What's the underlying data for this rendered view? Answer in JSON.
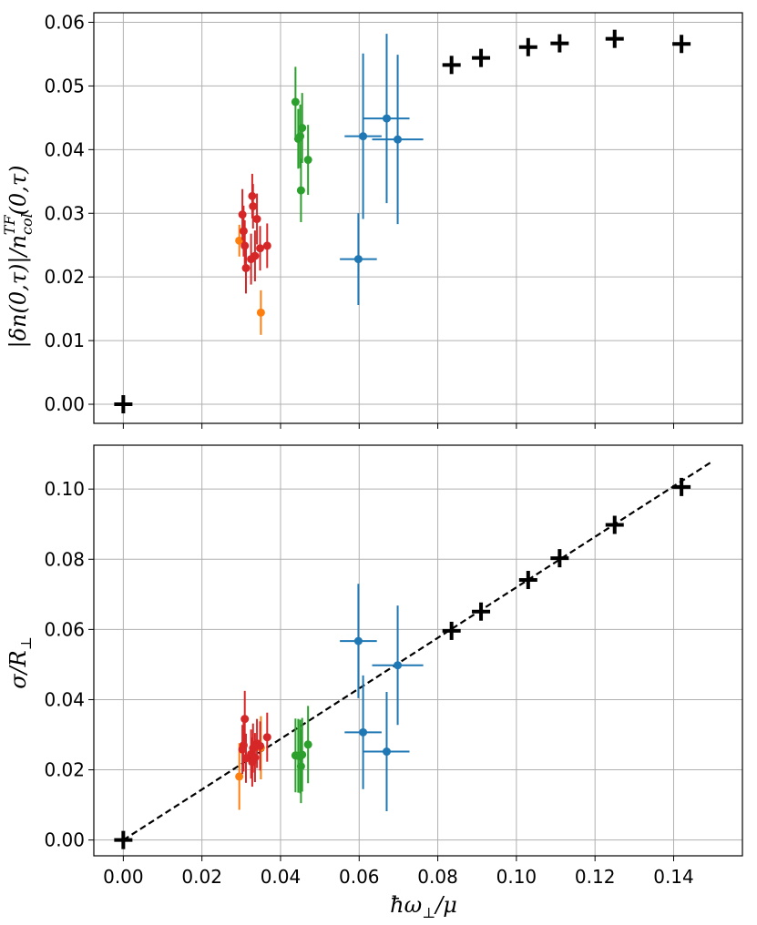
{
  "chart_data": [
    {
      "type": "scatter",
      "panel": "top",
      "title": "",
      "xlabel": "",
      "ylabel": "|δn(0,τ)|/n_col^TF(0,τ)",
      "xlim": [
        -0.0075,
        0.1575
      ],
      "ylim": [
        -0.003,
        0.0615
      ],
      "grid": true,
      "x_ticks": [
        0.0,
        0.02,
        0.04,
        0.06,
        0.08,
        0.1,
        0.12,
        0.14
      ],
      "y_ticks": [
        0.0,
        0.01,
        0.02,
        0.03,
        0.04,
        0.05,
        0.06
      ],
      "y_tick_labels": [
        "0.00",
        "0.01",
        "0.02",
        "0.03",
        "0.04",
        "0.05",
        "0.06"
      ],
      "series": [
        {
          "color": "#1f77b4",
          "marker": "circle",
          "points": [
            {
              "x": 0.0598,
              "y": 0.0228,
              "xerr": 0.0047,
              "yerr": 0.0072
            },
            {
              "x": 0.061,
              "y": 0.0421,
              "xerr": 0.0047,
              "yerr": 0.013
            },
            {
              "x": 0.067,
              "y": 0.0449,
              "xerr": 0.0058,
              "yerr": 0.0133
            },
            {
              "x": 0.0698,
              "y": 0.0416,
              "xerr": 0.0065,
              "yerr": 0.0133
            }
          ]
        },
        {
          "color": "#2ca02c",
          "marker": "circle",
          "points": [
            {
              "x": 0.0438,
              "y": 0.0475,
              "xerr": 0.0004,
              "yerr": 0.0055
            },
            {
              "x": 0.0445,
              "y": 0.0417,
              "xerr": 0.0004,
              "yerr": 0.0047
            },
            {
              "x": 0.045,
              "y": 0.0421,
              "xerr": 0.0004,
              "yerr": 0.005
            },
            {
              "x": 0.0452,
              "y": 0.0336,
              "xerr": 0.0003,
              "yerr": 0.005
            },
            {
              "x": 0.0455,
              "y": 0.0434,
              "xerr": 0.0006,
              "yerr": 0.0055
            },
            {
              "x": 0.047,
              "y": 0.0384,
              "xerr": 0.0005,
              "yerr": 0.0055
            }
          ]
        },
        {
          "color": "#ff7f0e",
          "marker": "circle",
          "points": [
            {
              "x": 0.0295,
              "y": 0.0257,
              "xerr": 0.0004,
              "yerr": 0.0025
            },
            {
              "x": 0.035,
              "y": 0.0144,
              "xerr": 0.0002,
              "yerr": 0.0035
            }
          ]
        },
        {
          "color": "#d62728",
          "marker": "circle",
          "points": [
            {
              "x": 0.0303,
              "y": 0.0298,
              "xerr": 0.0003,
              "yerr": 0.004
            },
            {
              "x": 0.0306,
              "y": 0.0272,
              "xerr": 0.0003,
              "yerr": 0.004
            },
            {
              "x": 0.0309,
              "y": 0.0249,
              "xerr": 0.0003,
              "yerr": 0.004
            },
            {
              "x": 0.0312,
              "y": 0.0214,
              "xerr": 0.0003,
              "yerr": 0.004
            },
            {
              "x": 0.0325,
              "y": 0.0228,
              "xerr": 0.0003,
              "yerr": 0.004
            },
            {
              "x": 0.0328,
              "y": 0.0327,
              "xerr": 0.0003,
              "yerr": 0.0035
            },
            {
              "x": 0.033,
              "y": 0.0311,
              "xerr": 0.0003,
              "yerr": 0.0035
            },
            {
              "x": 0.0335,
              "y": 0.0233,
              "xerr": 0.0003,
              "yerr": 0.004
            },
            {
              "x": 0.034,
              "y": 0.0291,
              "xerr": 0.0003,
              "yerr": 0.004
            },
            {
              "x": 0.0348,
              "y": 0.0245,
              "xerr": 0.0003,
              "yerr": 0.0035
            },
            {
              "x": 0.0366,
              "y": 0.0249,
              "xerr": 0.0003,
              "yerr": 0.0035
            }
          ]
        },
        {
          "color": "#000000",
          "marker": "plus",
          "points": [
            {
              "x": 0.0,
              "y": 0.0
            },
            {
              "x": 0.0835,
              "y": 0.0533
            },
            {
              "x": 0.091,
              "y": 0.0544
            },
            {
              "x": 0.103,
              "y": 0.0561
            },
            {
              "x": 0.111,
              "y": 0.0567
            },
            {
              "x": 0.125,
              "y": 0.0574
            },
            {
              "x": 0.142,
              "y": 0.0566
            }
          ]
        }
      ]
    },
    {
      "type": "scatter",
      "panel": "bottom",
      "title": "",
      "xlabel": "ħω⊥/μ",
      "ylabel": "σ/R⊥",
      "xlim": [
        -0.0075,
        0.1575
      ],
      "ylim": [
        -0.0045,
        0.1125
      ],
      "grid": true,
      "x_ticks": [
        0.0,
        0.02,
        0.04,
        0.06,
        0.08,
        0.1,
        0.12,
        0.14
      ],
      "x_tick_labels": [
        "0.00",
        "0.02",
        "0.04",
        "0.06",
        "0.08",
        "0.10",
        "0.12",
        "0.14"
      ],
      "y_ticks": [
        0.0,
        0.02,
        0.04,
        0.06,
        0.08,
        0.1
      ],
      "y_tick_labels": [
        "0.00",
        "0.02",
        "0.04",
        "0.06",
        "0.08",
        "0.10"
      ],
      "fit_line": {
        "style": "dashed",
        "color": "#000000",
        "x": [
          0.0,
          0.15
        ],
        "y": [
          0.0,
          0.108
        ]
      },
      "series": [
        {
          "color": "#1f77b4",
          "marker": "circle",
          "points": [
            {
              "x": 0.0598,
              "y": 0.0567,
              "xerr": 0.0047,
              "yerr": 0.0163
            },
            {
              "x": 0.061,
              "y": 0.0307,
              "xerr": 0.0047,
              "yerr": 0.0162
            },
            {
              "x": 0.067,
              "y": 0.0252,
              "xerr": 0.0058,
              "yerr": 0.017
            },
            {
              "x": 0.0698,
              "y": 0.0498,
              "xerr": 0.0065,
              "yerr": 0.017
            }
          ]
        },
        {
          "color": "#2ca02c",
          "marker": "circle",
          "points": [
            {
              "x": 0.0438,
              "y": 0.0241,
              "xerr": 0.0004,
              "yerr": 0.0105
            },
            {
              "x": 0.0445,
              "y": 0.024,
              "xerr": 0.0004,
              "yerr": 0.0105
            },
            {
              "x": 0.045,
              "y": 0.0238,
              "xerr": 0.0004,
              "yerr": 0.0105
            },
            {
              "x": 0.0452,
              "y": 0.021,
              "xerr": 0.0003,
              "yerr": 0.0105
            },
            {
              "x": 0.0455,
              "y": 0.0243,
              "xerr": 0.0006,
              "yerr": 0.0105
            },
            {
              "x": 0.047,
              "y": 0.0272,
              "xerr": 0.0005,
              "yerr": 0.011
            }
          ]
        },
        {
          "color": "#ff7f0e",
          "marker": "circle",
          "points": [
            {
              "x": 0.0295,
              "y": 0.0181,
              "xerr": 0.0004,
              "yerr": 0.0095
            },
            {
              "x": 0.035,
              "y": 0.0263,
              "xerr": 0.0002,
              "yerr": 0.009
            }
          ]
        },
        {
          "color": "#d62728",
          "marker": "circle",
          "points": [
            {
              "x": 0.0303,
              "y": 0.0258,
              "xerr": 0.0003,
              "yerr": 0.007
            },
            {
              "x": 0.0306,
              "y": 0.027,
              "xerr": 0.0003,
              "yerr": 0.0075
            },
            {
              "x": 0.0309,
              "y": 0.0345,
              "xerr": 0.0003,
              "yerr": 0.008
            },
            {
              "x": 0.0312,
              "y": 0.0233,
              "xerr": 0.0003,
              "yerr": 0.007
            },
            {
              "x": 0.0325,
              "y": 0.0245,
              "xerr": 0.0003,
              "yerr": 0.007
            },
            {
              "x": 0.0328,
              "y": 0.0222,
              "xerr": 0.0003,
              "yerr": 0.007
            },
            {
              "x": 0.033,
              "y": 0.0262,
              "xerr": 0.0003,
              "yerr": 0.007
            },
            {
              "x": 0.0335,
              "y": 0.0235,
              "xerr": 0.0003,
              "yerr": 0.007
            },
            {
              "x": 0.034,
              "y": 0.0275,
              "xerr": 0.0003,
              "yerr": 0.007
            },
            {
              "x": 0.0348,
              "y": 0.0268,
              "xerr": 0.0003,
              "yerr": 0.007
            },
            {
              "x": 0.0366,
              "y": 0.0293,
              "xerr": 0.0003,
              "yerr": 0.007
            }
          ]
        },
        {
          "color": "#000000",
          "marker": "plus",
          "points": [
            {
              "x": 0.0,
              "y": 0.0
            },
            {
              "x": 0.0835,
              "y": 0.0596
            },
            {
              "x": 0.091,
              "y": 0.0651
            },
            {
              "x": 0.103,
              "y": 0.0741
            },
            {
              "x": 0.111,
              "y": 0.0803
            },
            {
              "x": 0.125,
              "y": 0.0898
            },
            {
              "x": 0.142,
              "y": 0.1006
            }
          ]
        }
      ]
    }
  ]
}
